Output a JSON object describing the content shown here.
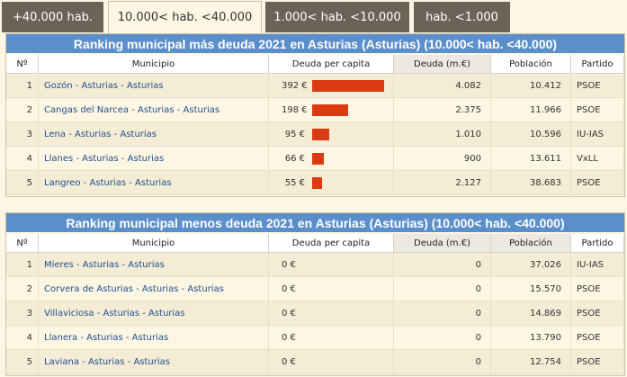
{
  "tabs": [
    {
      "label": "+40.000 hab.",
      "active": false
    },
    {
      "label": "10.000< hab. <40.000",
      "active": true
    },
    {
      "label": "1.000< hab. <10.000",
      "active": false
    },
    {
      "label": "hab. <1.000",
      "active": false
    }
  ],
  "colors": {
    "title_bg": "#5a8fcb",
    "bar": "#dc3b12",
    "tab_inactive": "#6d6258",
    "link": "#1f4f8f"
  },
  "columns": {
    "n": "Nº",
    "municipio": "Municipio",
    "deuda_per_capita": "Deuda per capita",
    "deuda": "Deuda (m.€)",
    "poblacion": "Población",
    "partido": "Partido"
  },
  "ranking_mas": {
    "title": "Ranking municipal más deuda 2021 en Asturias (Asturias) (10.000< hab. <40.000)",
    "rows": [
      {
        "n": "1",
        "municipio": "Gozón - Asturias - Asturias",
        "per_capita": "392 €",
        "per_capita_value": 392,
        "deuda": "4.082",
        "poblacion": "10.412",
        "partido": "PSOE"
      },
      {
        "n": "2",
        "municipio": "Cangas del Narcea - Asturias - Asturias",
        "per_capita": "198 €",
        "per_capita_value": 198,
        "deuda": "2.375",
        "poblacion": "11.966",
        "partido": "PSOE"
      },
      {
        "n": "3",
        "municipio": "Lena - Asturias - Asturias",
        "per_capita": "95 €",
        "per_capita_value": 95,
        "deuda": "1.010",
        "poblacion": "10.596",
        "partido": "IU-IAS"
      },
      {
        "n": "4",
        "municipio": "Llanes - Asturias - Asturias",
        "per_capita": "66 €",
        "per_capita_value": 66,
        "deuda": "900",
        "poblacion": "13.611",
        "partido": "VxLL"
      },
      {
        "n": "5",
        "municipio": "Langreo - Asturias - Asturias",
        "per_capita": "55 €",
        "per_capita_value": 55,
        "deuda": "2.127",
        "poblacion": "38.683",
        "partido": "PSOE"
      }
    ]
  },
  "ranking_menos": {
    "title": "Ranking municipal menos deuda 2021 en Asturias (Asturias) (10.000< hab. <40.000)",
    "rows": [
      {
        "n": "1",
        "municipio": "Mieres - Asturias - Asturias",
        "per_capita": "0 €",
        "deuda": "0",
        "poblacion": "37.026",
        "partido": "IU-IAS"
      },
      {
        "n": "2",
        "municipio": "Corvera de Asturias - Asturias - Asturias",
        "per_capita": "0 €",
        "deuda": "0",
        "poblacion": "15.570",
        "partido": "PSOE"
      },
      {
        "n": "3",
        "municipio": "Villaviciosa - Asturias - Asturias",
        "per_capita": "0 €",
        "deuda": "0",
        "poblacion": "14.869",
        "partido": "PSOE"
      },
      {
        "n": "4",
        "municipio": "Llanera - Asturias - Asturias",
        "per_capita": "0 €",
        "deuda": "0",
        "poblacion": "13.790",
        "partido": "PSOE"
      },
      {
        "n": "5",
        "municipio": "Laviana - Asturias - Asturias",
        "per_capita": "0 €",
        "deuda": "0",
        "poblacion": "12.754",
        "partido": "PSOE"
      }
    ]
  }
}
